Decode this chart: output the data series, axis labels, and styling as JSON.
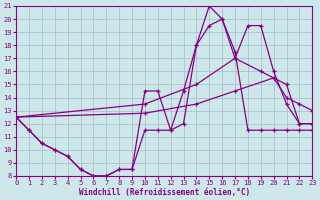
{
  "bg_color": "#cce8e8",
  "grid_color": "#aab8cc",
  "line_color": "#880088",
  "xlim": [
    0,
    23
  ],
  "ylim": [
    8,
    21
  ],
  "xticks": [
    0,
    1,
    2,
    3,
    4,
    5,
    6,
    7,
    8,
    9,
    10,
    11,
    12,
    13,
    14,
    15,
    16,
    17,
    18,
    19,
    20,
    21,
    22,
    23
  ],
  "yticks": [
    8,
    9,
    10,
    11,
    12,
    13,
    14,
    15,
    16,
    17,
    18,
    19,
    20,
    21
  ],
  "xlabel": "Windchill (Refroidissement éolien,°C)",
  "lines": [
    {
      "x": [
        0,
        1,
        2,
        3,
        4,
        5,
        6,
        7,
        8,
        9,
        10,
        11,
        12,
        13,
        14,
        15,
        16,
        17,
        18,
        19,
        20,
        21,
        22,
        23
      ],
      "y": [
        12.5,
        11.5,
        10.5,
        10.0,
        9.5,
        8.5,
        8.0,
        8.0,
        8.5,
        8.5,
        14.5,
        14.5,
        11.5,
        14.5,
        18.0,
        21.0,
        20.0,
        17.0,
        19.5,
        19.5,
        16.0,
        13.5,
        12.0,
        12.0
      ]
    },
    {
      "x": [
        0,
        1,
        2,
        3,
        4,
        5,
        6,
        7,
        8,
        9,
        10,
        11,
        12,
        13,
        14,
        15,
        16,
        17,
        18,
        19,
        20,
        21,
        22,
        23
      ],
      "y": [
        12.5,
        11.5,
        10.5,
        10.0,
        9.5,
        8.5,
        8.0,
        8.0,
        8.5,
        8.5,
        11.5,
        11.5,
        11.5,
        12.0,
        18.0,
        19.5,
        20.0,
        17.5,
        11.5,
        11.5,
        11.5,
        11.5,
        11.5,
        11.5
      ]
    },
    {
      "x": [
        0,
        10,
        14,
        17,
        19,
        20,
        21,
        22,
        23
      ],
      "y": [
        12.5,
        13.5,
        15.0,
        17.0,
        16.0,
        15.5,
        14.0,
        13.5,
        13.0
      ]
    },
    {
      "x": [
        0,
        10,
        14,
        17,
        20,
        21,
        22,
        23
      ],
      "y": [
        12.5,
        12.8,
        13.5,
        14.5,
        15.5,
        15.0,
        12.0,
        12.0
      ]
    }
  ]
}
